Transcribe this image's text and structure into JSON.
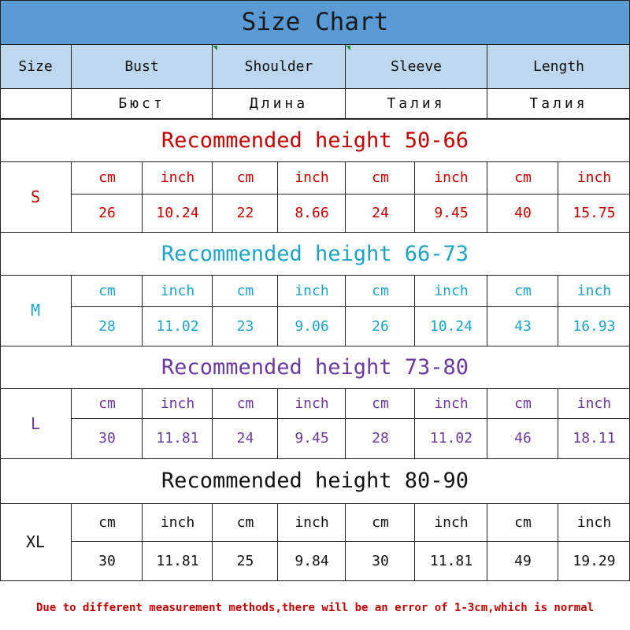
{
  "title": "Size Chart",
  "header": {
    "size": "Size",
    "bust": "Bust",
    "shoulder": "Shoulder",
    "sleeve": "Sleeve",
    "length": "Length"
  },
  "russian": {
    "bust": "Бюст",
    "shoulder": "Длина",
    "sleeve": "Талия",
    "length": "Талия"
  },
  "unit_labels": [
    "cm",
    "inch",
    "cm",
    "inch",
    "cm",
    "inch",
    "cm",
    "inch"
  ],
  "sections": [
    {
      "size": "S",
      "recommended": "Recommended height 50-66",
      "color": "#c00000",
      "values": [
        "26",
        "10.24",
        "22",
        "8.66",
        "24",
        "9.45",
        "40",
        "15.75"
      ]
    },
    {
      "size": "M",
      "recommended": "Recommended height 66-73",
      "color": "#1fa3c4",
      "values": [
        "28",
        "11.02",
        "23",
        "9.06",
        "26",
        "10.24",
        "43",
        "16.93"
      ]
    },
    {
      "size": "L",
      "recommended": "Recommended height 73-80",
      "color": "#6a3a9c",
      "values": [
        "30",
        "11.81",
        "24",
        "9.45",
        "28",
        "11.02",
        "46",
        "18.11"
      ]
    },
    {
      "size": "XL",
      "recommended": "Recommended height 80-90",
      "color": "#111111",
      "values": [
        "30",
        "11.81",
        "25",
        "9.84",
        "30",
        "11.81",
        "49",
        "19.29"
      ]
    }
  ],
  "note": "Due to different measurement methods,there will be an error of 1-3cm,which is normal"
}
